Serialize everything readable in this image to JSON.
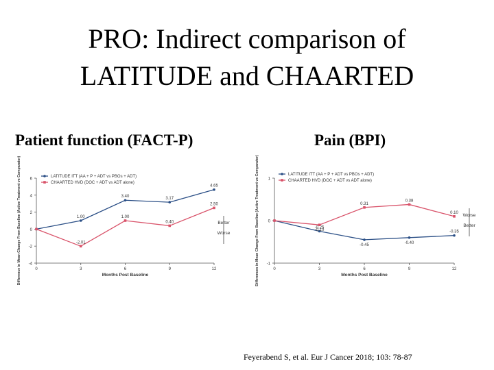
{
  "title_line1": "PRO: Indirect comparison of",
  "title_line2": "LATITUDE and CHAARTED",
  "citation": "Feyerabend S, et al. Eur J Cancer 2018; 103: 78-87",
  "colors": {
    "latitude": "#2b4f86",
    "chaarted": "#d9536a",
    "axis": "#555555"
  },
  "chart_data": [
    {
      "type": "line",
      "title": "Patient function (FACT-P)",
      "xlabel": "Months Post Baseline",
      "ylabel": "Difference in Mean Change From Baseline (Active Treatment vs Comparator)",
      "x": [
        0,
        3,
        6,
        9,
        12
      ],
      "xlim": [
        0,
        12
      ],
      "ylim": [
        -4,
        6
      ],
      "yticks": [
        -4,
        -2,
        0,
        2,
        4,
        6
      ],
      "series": [
        {
          "name": "LATITUDE ITT (AA + P + ADT vs PBOs + ADT)",
          "color": "#2b4f86",
          "values": [
            0,
            1.0,
            3.4,
            3.17,
            4.65
          ],
          "labels": [
            "",
            "1.00",
            "3.40",
            "3.17",
            "4.65"
          ]
        },
        {
          "name": "CHAARTED HVD (DOC + ADT vs ADT alone)",
          "color": "#d9536a",
          "values": [
            0,
            -2.01,
            1.0,
            0.4,
            2.5
          ],
          "labels": [
            "",
            "-2.01",
            "1.00",
            "0.40",
            "2.50"
          ]
        }
      ],
      "annotations": [
        "Better",
        "Worse"
      ],
      "legend": "top-left"
    },
    {
      "type": "line",
      "title": "Pain (BPI)",
      "xlabel": "Months Post Baseline",
      "ylabel": "Differences in Mean Change From Baseline (Active Treatment vs Comparator)",
      "x": [
        0,
        3,
        6,
        9,
        12
      ],
      "xlim": [
        0,
        12
      ],
      "ylim": [
        -1,
        1
      ],
      "yticks": [
        -1,
        0,
        1
      ],
      "series": [
        {
          "name": "LATITUDE ITT (AA + P + ADT vs PBOs + ADT)",
          "color": "#2b4f86",
          "values": [
            0,
            -0.25,
            -0.45,
            -0.4,
            -0.35
          ],
          "labels": [
            "",
            "-0.25",
            "-0.45",
            "-0.40",
            "-0.35"
          ]
        },
        {
          "name": "CHAARTED HVD (DOC + ADT vs ADT alone)",
          "color": "#d9536a",
          "values": [
            0,
            -0.1,
            0.31,
            0.38,
            0.1
          ],
          "labels": [
            "",
            "-0.10",
            "0.31",
            "0.38",
            "0.10"
          ]
        }
      ],
      "annotations": [
        "Worse",
        "Better"
      ],
      "legend": "top-left"
    }
  ]
}
